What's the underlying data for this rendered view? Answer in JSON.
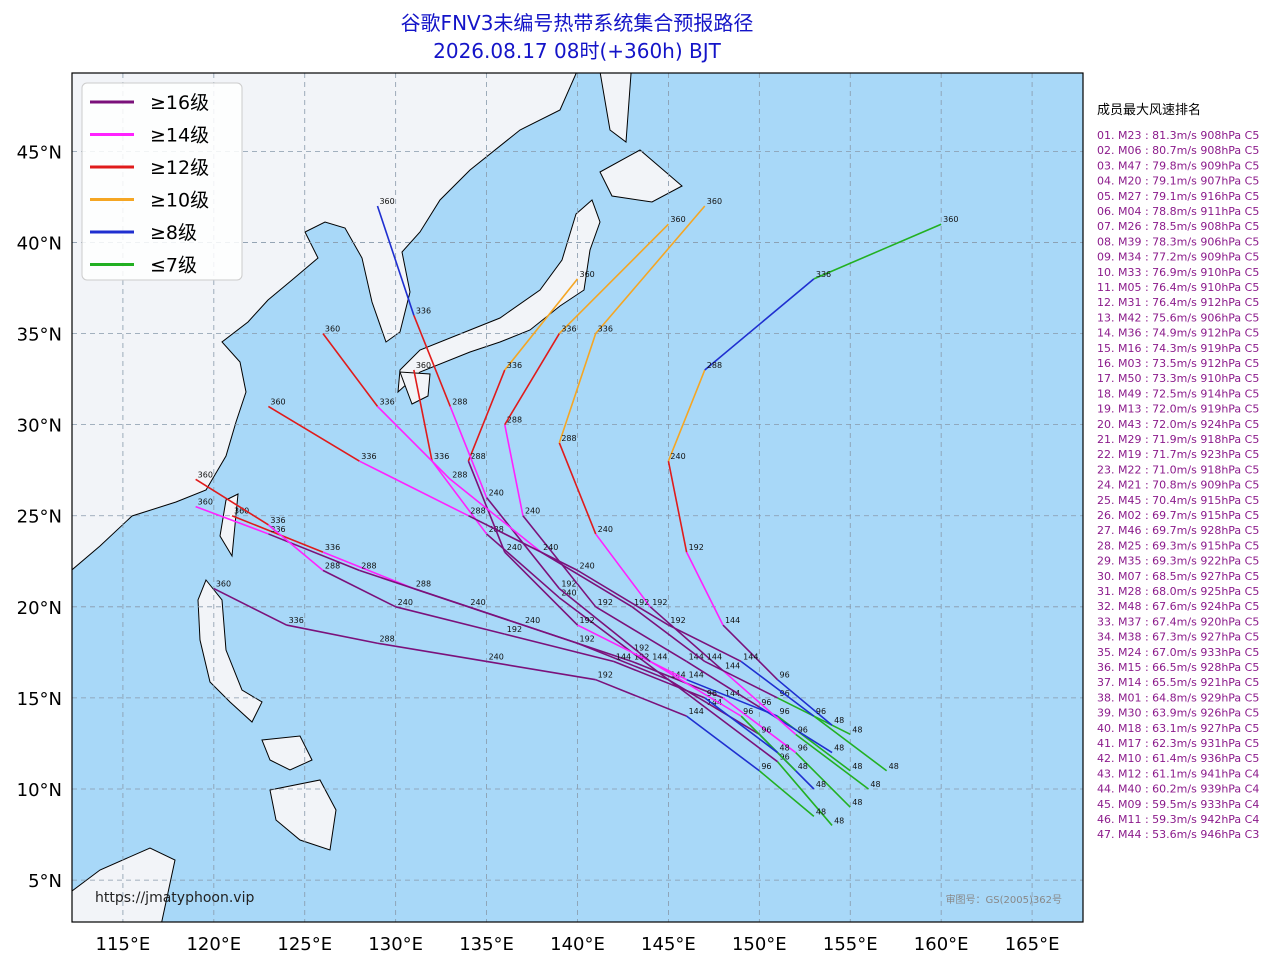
{
  "header": {
    "title": "谷歌FNV3未编号热带系统集合预报路径",
    "subtitle": "2026.08.17 08时(+360h) BJT"
  },
  "map": {
    "xlim": [
      112.2,
      167.8
    ],
    "ylim": [
      2.7,
      49.3
    ],
    "xticks": [
      {
        "value": 115,
        "label": "115°E"
      },
      {
        "value": 120,
        "label": "120°E"
      },
      {
        "value": 125,
        "label": "125°E"
      },
      {
        "value": 130,
        "label": "130°E"
      },
      {
        "value": 135,
        "label": "135°E"
      },
      {
        "value": 140,
        "label": "140°E"
      },
      {
        "value": 145,
        "label": "145°E"
      },
      {
        "value": 150,
        "label": "150°E"
      },
      {
        "value": 155,
        "label": "155°E"
      },
      {
        "value": 160,
        "label": "160°E"
      },
      {
        "value": 165,
        "label": "165°E"
      }
    ],
    "yticks": [
      {
        "value": 5,
        "label": "5°N"
      },
      {
        "value": 10,
        "label": "10°N"
      },
      {
        "value": 15,
        "label": "15°N"
      },
      {
        "value": 20,
        "label": "20°N"
      },
      {
        "value": 25,
        "label": "25°N"
      },
      {
        "value": 30,
        "label": "30°N"
      },
      {
        "value": 35,
        "label": "35°N"
      },
      {
        "value": 40,
        "label": "40°N"
      },
      {
        "value": 45,
        "label": "45°N"
      }
    ],
    "grid": true,
    "website": "https://jmatyphoon.vip",
    "review_number": "审图号：GS(2005)362号"
  },
  "legend": [
    {
      "name": "≥16级",
      "color": "#7b117b"
    },
    {
      "name": "≥14级",
      "color": "#ff22ff"
    },
    {
      "name": "≥12级",
      "color": "#e01b1b"
    },
    {
      "name": "≥10级",
      "color": "#f5a623"
    },
    {
      "name": "≥8级",
      "color": "#1f2fd0"
    },
    {
      "name": "≤7级",
      "color": "#22b022"
    }
  ],
  "tracks": [
    {
      "points": [
        [
          154,
          8
        ],
        [
          151,
          11.5
        ],
        [
          147,
          14.5
        ],
        [
          143,
          17.5
        ],
        [
          139,
          20.5
        ],
        [
          135,
          24
        ],
        [
          132,
          28
        ],
        [
          131,
          33
        ]
      ],
      "colors": [
        "#22b022",
        "#7b117b",
        "#7b117b",
        "#7b117b",
        "#7b117b",
        "#ff22ff",
        "#e01b1b"
      ],
      "labels": [
        "48",
        "96",
        "144",
        "192",
        "240",
        "288",
        "336",
        "360"
      ]
    },
    {
      "points": [
        [
          155,
          9
        ],
        [
          152,
          12
        ],
        [
          148,
          15
        ],
        [
          143,
          17
        ],
        [
          137,
          19
        ],
        [
          131,
          21
        ],
        [
          126,
          23
        ],
        [
          121,
          25
        ]
      ],
      "colors": [
        "#22b022",
        "#ff22ff",
        "#7b117b",
        "#7b117b",
        "#7b117b",
        "#ff22ff",
        "#e01b1b"
      ],
      "labels": [
        "48",
        "96",
        "144",
        "192",
        "240",
        "288",
        "336",
        "360"
      ]
    },
    {
      "points": [
        [
          153,
          10
        ],
        [
          150,
          13
        ],
        [
          145,
          16
        ],
        [
          140,
          18
        ],
        [
          134,
          20
        ],
        [
          128,
          22
        ],
        [
          123,
          24
        ],
        [
          119,
          25.5
        ]
      ],
      "colors": [
        "#1f2fd0",
        "#7b117b",
        "#7b117b",
        "#7b117b",
        "#7b117b",
        "#7b117b",
        "#ff22ff"
      ],
      "labels": [
        "48",
        "96",
        "144",
        "192",
        "240",
        "288",
        "336",
        "360"
      ]
    },
    {
      "points": [
        [
          155,
          11
        ],
        [
          151,
          14
        ],
        [
          146,
          16
        ],
        [
          140,
          19
        ],
        [
          136,
          23
        ],
        [
          134,
          28
        ],
        [
          136,
          33
        ],
        [
          140,
          38
        ]
      ],
      "colors": [
        "#22b022",
        "#1f2fd0",
        "#ff22ff",
        "#7b117b",
        "#7b117b",
        "#e01b1b",
        "#f5a623"
      ],
      "labels": [
        "48",
        "96",
        "144",
        "192",
        "240",
        "288",
        "336",
        "360"
      ]
    },
    {
      "points": [
        [
          152,
          11
        ],
        [
          149,
          14
        ],
        [
          144,
          17
        ],
        [
          139,
          21
        ],
        [
          135,
          26
        ],
        [
          133,
          31
        ],
        [
          131,
          36
        ],
        [
          129,
          42
        ]
      ],
      "colors": [
        "#22b022",
        "#ff22ff",
        "#7b117b",
        "#7b117b",
        "#ff22ff",
        "#e01b1b",
        "#1f2fd0"
      ],
      "labels": [
        "48",
        "96",
        "144",
        "192",
        "240",
        "288",
        "336",
        "360"
      ]
    },
    {
      "points": [
        [
          154,
          12
        ],
        [
          150,
          14.5
        ],
        [
          146,
          17
        ],
        [
          141,
          20
        ],
        [
          137,
          25
        ],
        [
          136,
          30
        ],
        [
          139,
          35
        ],
        [
          145,
          41
        ]
      ],
      "colors": [
        "#1f2fd0",
        "#7b117b",
        "#7b117b",
        "#7b117b",
        "#ff22ff",
        "#e01b1b",
        "#f5a623"
      ],
      "labels": [
        "48",
        "96",
        "144",
        "192",
        "240",
        "288",
        "336",
        "360"
      ]
    },
    {
      "points": [
        [
          153,
          8.5
        ],
        [
          150,
          11
        ],
        [
          146,
          14
        ],
        [
          141,
          16
        ],
        [
          135,
          17
        ],
        [
          129,
          18
        ],
        [
          124,
          19
        ],
        [
          120,
          21
        ]
      ],
      "colors": [
        "#22b022",
        "#1f2fd0",
        "#7b117b",
        "#7b117b",
        "#7b117b",
        "#7b117b",
        "#7b117b"
      ],
      "labels": [
        "48",
        "96",
        "144",
        "192",
        "240",
        "288",
        "336",
        "360"
      ]
    },
    {
      "points": [
        [
          156,
          10
        ],
        [
          152,
          13
        ],
        [
          148,
          16.5
        ],
        [
          144,
          20
        ],
        [
          141,
          24
        ],
        [
          139,
          29
        ],
        [
          141,
          35
        ],
        [
          147,
          42
        ]
      ],
      "colors": [
        "#22b022",
        "#ff22ff",
        "#7b117b",
        "#ff22ff",
        "#e01b1b",
        "#f5a623",
        "#f5a623"
      ],
      "labels": [
        "48",
        "96",
        "144",
        "192",
        "240",
        "288",
        "336",
        "360"
      ]
    },
    {
      "points": [
        [
          151,
          12
        ],
        [
          147,
          15
        ],
        [
          142,
          17
        ],
        [
          136,
          18.5
        ],
        [
          130,
          20
        ],
        [
          126,
          22
        ],
        [
          123,
          24.5
        ],
        [
          119,
          27
        ]
      ],
      "colors": [
        "#1f2fd0",
        "#7b117b",
        "#7b117b",
        "#7b117b",
        "#7b117b",
        "#ff22ff",
        "#e01b1b"
      ],
      "labels": [
        "48",
        "96",
        "144",
        "192",
        "240",
        "288",
        "336",
        "360"
      ]
    },
    {
      "points": [
        [
          155,
          13
        ],
        [
          151,
          15
        ],
        [
          147,
          17
        ],
        [
          143,
          20
        ],
        [
          138,
          23
        ],
        [
          133,
          27
        ],
        [
          129,
          31
        ],
        [
          126,
          35
        ]
      ],
      "colors": [
        "#22b022",
        "#7b117b",
        "#7b117b",
        "#7b117b",
        "#ff22ff",
        "#ff22ff",
        "#e01b1b"
      ],
      "labels": [
        "48",
        "96",
        "144",
        "192",
        "240",
        "288",
        "336",
        "360"
      ]
    },
    {
      "points": [
        [
          154,
          13.5
        ],
        [
          151,
          16
        ],
        [
          148,
          19
        ],
        [
          146,
          23
        ],
        [
          145,
          28
        ],
        [
          147,
          33
        ],
        [
          153,
          38
        ],
        [
          160,
          41
        ]
      ],
      "colors": [
        "#1f2fd0",
        "#7b117b",
        "#ff22ff",
        "#e01b1b",
        "#f5a623",
        "#1f2fd0",
        "#22b022"
      ],
      "labels": [
        "48",
        "96",
        "144",
        "192",
        "240",
        "288",
        "336",
        "360"
      ]
    },
    {
      "points": [
        [
          157,
          11
        ],
        [
          153,
          14
        ],
        [
          149,
          17
        ],
        [
          145,
          19
        ],
        [
          140,
          22
        ],
        [
          134,
          25
        ],
        [
          128,
          28
        ],
        [
          123,
          31
        ]
      ],
      "colors": [
        "#22b022",
        "#1f2fd0",
        "#7b117b",
        "#7b117b",
        "#7b117b",
        "#ff22ff",
        "#e01b1b"
      ],
      "labels": [
        "48",
        "96",
        "144",
        "192",
        "240",
        "288",
        "336",
        "360"
      ]
    }
  ],
  "ranking": {
    "title": "成员最大风速排名",
    "entries": [
      "01. M23 : 81.3m/s 908hPa C5",
      "02. M06 : 80.7m/s 908hPa C5",
      "03. M47 : 79.8m/s 909hPa C5",
      "04. M20 : 79.1m/s 907hPa C5",
      "05. M27 : 79.1m/s 916hPa C5",
      "06. M04 : 78.8m/s 911hPa C5",
      "07. M26 : 78.5m/s 908hPa C5",
      "08. M39 : 78.3m/s 906hPa C5",
      "09. M34 : 77.2m/s 909hPa C5",
      "10. M33 : 76.9m/s 910hPa C5",
      "11. M05 : 76.4m/s 910hPa C5",
      "12. M31 : 76.4m/s 912hPa C5",
      "13. M42 : 75.6m/s 906hPa C5",
      "14. M36 : 74.9m/s 912hPa C5",
      "15. M16 : 74.3m/s 919hPa C5",
      "16. M03 : 73.5m/s 912hPa C5",
      "17. M50 : 73.3m/s 910hPa C5",
      "18. M49 : 72.5m/s 914hPa C5",
      "19. M13 : 72.0m/s 919hPa C5",
      "20. M43 : 72.0m/s 924hPa C5",
      "21. M29 : 71.9m/s 918hPa C5",
      "22. M19 : 71.7m/s 923hPa C5",
      "23. M22 : 71.0m/s 918hPa C5",
      "24. M21 : 70.8m/s 909hPa C5",
      "25. M45 : 70.4m/s 915hPa C5",
      "26. M02 : 69.7m/s 915hPa C5",
      "27. M46 : 69.7m/s 928hPa C5",
      "28. M25 : 69.3m/s 915hPa C5",
      "29. M35 : 69.3m/s 922hPa C5",
      "30. M07 : 68.5m/s 927hPa C5",
      "31. M28 : 68.0m/s 925hPa C5",
      "32. M48 : 67.6m/s 924hPa C5",
      "33. M37 : 67.4m/s 920hPa C5",
      "34. M38 : 67.3m/s 927hPa C5",
      "35. M24 : 67.0m/s 933hPa C5",
      "36. M15 : 66.5m/s 928hPa C5",
      "37. M14 : 65.5m/s 921hPa C5",
      "38. M01 : 64.8m/s 929hPa C5",
      "39. M30 : 63.9m/s 926hPa C5",
      "40. M18 : 63.1m/s 927hPa C5",
      "41. M17 : 62.3m/s 931hPa C5",
      "42. M10 : 61.4m/s 936hPa C5",
      "43. M12 : 61.1m/s 941hPa C4",
      "44. M40 : 60.2m/s 939hPa C4",
      "45. M09 : 59.5m/s 933hPa C4",
      "46. M11 : 59.3m/s 942hPa C4",
      "47. M44 : 53.6m/s 946hPa C3"
    ]
  }
}
